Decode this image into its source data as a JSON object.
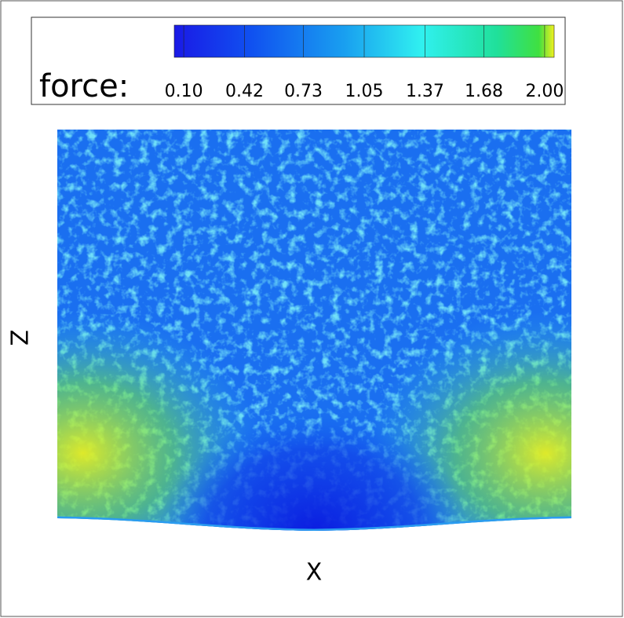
{
  "chart_data": {
    "type": "contour",
    "colorbar_label": "force:",
    "clim": [
      0.05,
      2.05
    ],
    "cticks": [
      {
        "value": 0.1,
        "label": "0.10"
      },
      {
        "value": 0.42,
        "label": "0.42"
      },
      {
        "value": 0.73,
        "label": "0.73"
      },
      {
        "value": 1.05,
        "label": "1.05"
      },
      {
        "value": 1.37,
        "label": "1.37"
      },
      {
        "value": 1.68,
        "label": "1.68"
      },
      {
        "value": 2.0,
        "label": "2.00"
      }
    ],
    "xlabel": "X",
    "ylabel": "Z"
  }
}
